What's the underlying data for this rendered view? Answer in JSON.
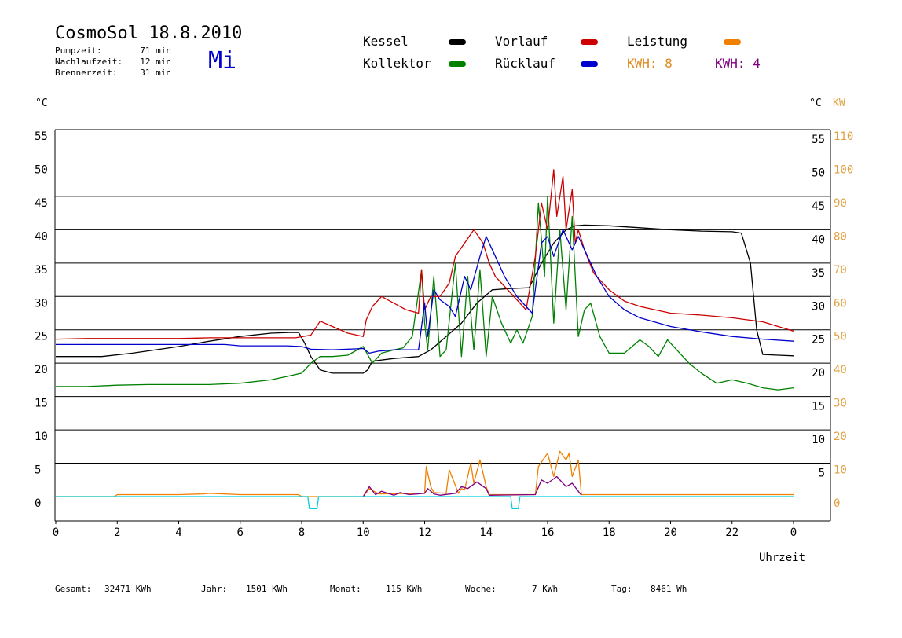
{
  "header": {
    "title": "CosmoSol 18.8.2010",
    "weekday": "Mi",
    "meta": [
      {
        "label": "Pumpzeit:",
        "value": "71 min"
      },
      {
        "label": "Nachlaufzeit:",
        "value": "12 min"
      },
      {
        "label": "Brennerzeit:",
        "value": "31 min"
      }
    ]
  },
  "legend": {
    "kessel": "Kessel",
    "kollektor": "Kollektor",
    "vorlauf": "Vorlauf",
    "ruecklauf": "Rücklauf",
    "leistung": "Leistung",
    "kwh1": "KWH: 8",
    "kwh2": "KWH: 4"
  },
  "footer": {
    "gesamt_label": "Gesamt:",
    "gesamt_value": "32471 KWh",
    "jahr_label": "Jahr:",
    "jahr_value": "1501 KWh",
    "monat_label": "Monat:",
    "monat_value": "115 KWh",
    "woche_label": "Woche:",
    "woche_value": "7 KWh",
    "tag_label": "Tag:",
    "tag_value": "8461 Wh"
  },
  "colors": {
    "kessel": "#000000",
    "kollektor": "#008000",
    "vorlauf": "#cc0000",
    "ruecklauf": "#0000cc",
    "leistung": "#f08000",
    "leistung2": "#800080",
    "pump": "#00d0e0",
    "axis_right": "#e0a040"
  },
  "chart_data": {
    "type": "line",
    "xlabel": "Uhrzeit",
    "ylabel_left": "°C",
    "ylabel_right_temp": "°C",
    "ylabel_right_power": "KW",
    "xlim": [
      0,
      24
    ],
    "ylim": [
      0,
      55
    ],
    "ylim_right_power": [
      0,
      110
    ],
    "x_ticks": [
      "0",
      "2",
      "4",
      "6",
      "8",
      "10",
      "12",
      "14",
      "16",
      "18",
      "20",
      "22",
      "0"
    ],
    "y_ticks_left": [
      "55",
      "50",
      "45",
      "40",
      "35",
      "30",
      "25",
      "20",
      "15",
      "10",
      "5",
      "0"
    ],
    "y_ticks_right": [
      "55",
      "50",
      "45",
      "40",
      "35",
      "30",
      "25",
      "20",
      "15",
      "10",
      "5"
    ],
    "y_ticks_power": [
      "110",
      "100",
      "90",
      "80",
      "70",
      "60",
      "50",
      "40",
      "30",
      "20",
      "10",
      "0"
    ],
    "grid": "horizontal",
    "series": [
      {
        "name": "Kessel",
        "key": "kessel",
        "x": [
          0,
          1.5,
          2.5,
          4,
          5,
          6,
          7,
          7.6,
          7.9,
          8.1,
          8.3,
          8.6,
          9,
          9.5,
          10,
          10.15,
          10.3,
          11,
          11.8,
          12.2,
          12.7,
          13.2,
          13.7,
          14.2,
          14.8,
          15.4,
          15.8,
          16.2,
          16.6,
          16.9,
          17.2,
          18,
          19,
          20,
          21,
          22,
          22.3,
          22.6,
          22.8,
          23,
          23.5,
          24
        ],
        "y": [
          21,
          21,
          21.5,
          22.5,
          23.3,
          24,
          24.5,
          24.6,
          24.6,
          23,
          21,
          19,
          18.5,
          18.5,
          18.5,
          19,
          20.3,
          20.7,
          21,
          22,
          24,
          26,
          29,
          31,
          31.2,
          31.3,
          35,
          38,
          40,
          40.6,
          40.7,
          40.6,
          40.3,
          40,
          39.8,
          39.7,
          39.5,
          35,
          25,
          21.3,
          21.2,
          21.1
        ]
      },
      {
        "name": "Kollektor",
        "key": "kollektor",
        "x": [
          0,
          1,
          2,
          3,
          4,
          5,
          6,
          7,
          7.5,
          8,
          8.3,
          8.6,
          9,
          9.5,
          10,
          10.3,
          10.6,
          11,
          11.3,
          11.6,
          11.9,
          12,
          12.1,
          12.3,
          12.5,
          12.7,
          13,
          13.2,
          13.4,
          13.6,
          13.8,
          14,
          14.2,
          14.5,
          14.8,
          15,
          15.2,
          15.5,
          15.7,
          15.9,
          16,
          16.2,
          16.4,
          16.6,
          16.8,
          17,
          17.2,
          17.4,
          17.7,
          18,
          18.5,
          19,
          19.3,
          19.6,
          19.9,
          20.2,
          20.6,
          21,
          21.5,
          22,
          22.5,
          23,
          23.5,
          24
        ],
        "y": [
          16.5,
          16.5,
          16.7,
          16.8,
          16.8,
          16.8,
          17,
          17.5,
          18,
          18.5,
          20,
          21,
          21,
          21.2,
          22.5,
          20,
          21.5,
          22,
          22.3,
          24,
          34,
          26,
          22,
          33,
          21,
          22,
          35,
          21,
          33,
          22,
          34,
          21,
          30,
          26,
          23,
          25,
          23,
          27,
          44,
          33,
          45,
          26,
          40,
          28,
          42,
          24,
          28,
          29,
          24,
          21.5,
          21.5,
          23.5,
          22.5,
          21,
          23.5,
          22,
          20,
          18.5,
          17,
          17.5,
          17,
          16.3,
          16,
          16.3
        ]
      },
      {
        "name": "Vorlauf",
        "key": "vorlauf",
        "x": [
          0,
          1,
          2,
          3,
          4,
          5,
          6,
          7,
          7.8,
          8.3,
          8.6,
          9,
          9.5,
          10,
          10.1,
          10.3,
          10.6,
          11,
          11.4,
          11.8,
          11.9,
          12,
          12.2,
          12.5,
          12.8,
          13,
          13.3,
          13.6,
          13.9,
          14.1,
          14.3,
          14.6,
          15,
          15.3,
          15.6,
          15.8,
          16,
          16.2,
          16.3,
          16.5,
          16.6,
          16.8,
          16.9,
          17,
          17.2,
          17.5,
          18,
          18.5,
          19,
          19.5,
          20,
          21,
          22,
          22.5,
          23,
          23.5,
          24
        ],
        "y": [
          23.6,
          23.7,
          23.7,
          23.7,
          23.7,
          23.8,
          23.8,
          23.8,
          23.8,
          24.2,
          26.3,
          25.5,
          24.5,
          24,
          26.5,
          28.5,
          30,
          29,
          28,
          27.5,
          34,
          28,
          30,
          30,
          32,
          36,
          38,
          40,
          38,
          35,
          33,
          31.5,
          29.5,
          28,
          36,
          44,
          40,
          49,
          42,
          48,
          40,
          46,
          38,
          40,
          37,
          33.5,
          31,
          29.3,
          28.5,
          28,
          27.5,
          27.2,
          26.8,
          26.5,
          26.2,
          25.5,
          24.8
        ]
      },
      {
        "name": "Rücklauf",
        "key": "ruecklauf",
        "x": [
          0,
          2,
          4,
          5.5,
          6,
          7,
          7.5,
          8,
          8.3,
          9,
          10,
          10.2,
          10.5,
          11,
          11.8,
          12,
          12.1,
          12.3,
          12.5,
          12.8,
          13,
          13.3,
          13.5,
          13.8,
          14,
          14.3,
          14.6,
          15,
          15.3,
          15.5,
          15.8,
          16,
          16.2,
          16.5,
          16.8,
          17,
          17.3,
          17.6,
          18,
          18.5,
          19,
          20,
          21,
          22,
          23,
          24
        ],
        "y": [
          22.8,
          22.8,
          22.8,
          22.8,
          22.6,
          22.6,
          22.6,
          22.5,
          22.1,
          22,
          22.2,
          21.5,
          21.8,
          22,
          22,
          29,
          24,
          31,
          29.5,
          28.5,
          27,
          33,
          31,
          36,
          39,
          36,
          33,
          30,
          28.5,
          27.5,
          38,
          39,
          36,
          40,
          37,
          39,
          36,
          33,
          30,
          28,
          26.8,
          25.5,
          24.7,
          24,
          23.6,
          23.3
        ]
      },
      {
        "name": "Leistung",
        "key": "leistung",
        "x": [
          0,
          1.9,
          2,
          4,
          4.8,
          5,
          6,
          7.9,
          8,
          10,
          10.2,
          10.5,
          12,
          12.05,
          12.2,
          12.3,
          12.7,
          12.8,
          13.1,
          13.2,
          13.3,
          13.5,
          13.6,
          13.8,
          14,
          14.1,
          15.6,
          15.7,
          16,
          16.2,
          16.4,
          16.6,
          16.7,
          16.8,
          17,
          17.1,
          24
        ],
        "y": [
          0,
          0,
          0.3,
          0.3,
          0.4,
          0.5,
          0.3,
          0.3,
          0,
          0,
          1.2,
          0.4,
          0.5,
          4.5,
          1.5,
          0.6,
          0.5,
          4,
          0.5,
          1.2,
          1,
          5,
          2,
          5.5,
          1.5,
          0.3,
          0.3,
          4.5,
          6.5,
          3,
          6.8,
          5.5,
          6.5,
          3,
          5.5,
          0.3,
          0.3
        ]
      },
      {
        "name": "Leistung 2",
        "key": "leistung2",
        "x": [
          10,
          10.2,
          10.4,
          10.6,
          11,
          11.2,
          11.5,
          12,
          12.1,
          12.3,
          12.5,
          13,
          13.2,
          13.4,
          13.7,
          14,
          14.1,
          15.6,
          15.8,
          16,
          16.3,
          16.6,
          16.8,
          17,
          17.1
        ],
        "y": [
          0,
          1.5,
          0.3,
          0.8,
          0.2,
          0.6,
          0.3,
          0.5,
          1.2,
          0.4,
          0.2,
          0.5,
          1.5,
          1.2,
          2.2,
          1.2,
          0.2,
          0.3,
          2.5,
          2,
          3,
          1.5,
          2,
          0.8,
          0.2
        ]
      },
      {
        "name": "Pumpe",
        "key": "pump",
        "x": [
          0,
          8.2,
          8.25,
          8.5,
          8.55,
          14.8,
          14.85,
          15.05,
          15.1,
          24
        ],
        "y": [
          0,
          0,
          -1.8,
          -1.8,
          0,
          0,
          -1.8,
          -1.8,
          0,
          0
        ]
      }
    ]
  }
}
